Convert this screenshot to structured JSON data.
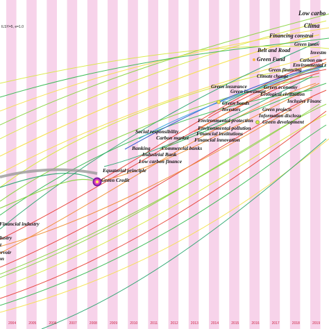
{
  "figure": {
    "param_text": "ILSY=5, e=1.0",
    "background_band_color": "#f7d3ea",
    "years": [
      "2004",
      "2005",
      "2006",
      "2007",
      "2008",
      "2009",
      "2010",
      "2011",
      "2012",
      "2013",
      "2014",
      "2015",
      "2016",
      "2017",
      "2018",
      "2019"
    ]
  },
  "keywords": [
    {
      "key": "low_carbon",
      "text": "Low carbo",
      "size": 9
    },
    {
      "key": "climate",
      "text": "Clima",
      "size": 9
    },
    {
      "key": "financing_constraints",
      "text": "Financing constrai",
      "size": 8
    },
    {
      "key": "green_innovation",
      "text": "Green innov",
      "size": 7
    },
    {
      "key": "belt_and_road",
      "text": "Belt and Road",
      "size": 8
    },
    {
      "key": "investment",
      "text": "Investm",
      "size": 7
    },
    {
      "key": "green_fund",
      "text": "Green Fund",
      "size": 8
    },
    {
      "key": "carbon_emissions",
      "text": "Carbon em",
      "size": 7
    },
    {
      "key": "environmental_regulation",
      "text": "Environmental r",
      "size": 7
    },
    {
      "key": "green_financing",
      "text": "Green financing",
      "size": 7
    },
    {
      "key": "climate_change",
      "text": "Climate change",
      "size": 7
    },
    {
      "key": "green_insurance",
      "text": "Green insurance",
      "size": 7.5
    },
    {
      "key": "green_economy",
      "text": "Green economy",
      "size": 7.5
    },
    {
      "key": "green_investment",
      "text": "Green investment",
      "size": 7
    },
    {
      "key": "ecological_civilization",
      "text": "Ecological civilization",
      "size": 7
    },
    {
      "key": "inclusive_finance",
      "text": "Inclusive Financ",
      "size": 7
    },
    {
      "key": "green_bonds",
      "text": "Green bonds",
      "size": 7.5
    },
    {
      "key": "investors",
      "text": "Investors",
      "size": 7
    },
    {
      "key": "green_projects",
      "text": "Green projects",
      "size": 7
    },
    {
      "key": "information_disclosure",
      "text": "Information disclosu",
      "size": 7
    },
    {
      "key": "green_development",
      "text": "Green development",
      "size": 7.5
    },
    {
      "key": "environmental_protection",
      "text": "Environmental protection",
      "size": 7.5
    },
    {
      "key": "environmental_pollution",
      "text": "Environmental pollution",
      "size": 7.5
    },
    {
      "key": "social_responsibility",
      "text": "Social responsibility",
      "size": 7.5
    },
    {
      "key": "financial_institutions",
      "text": "Financial institutions",
      "size": 7.5
    },
    {
      "key": "carbon_market",
      "text": "Carbon market",
      "size": 7.5
    },
    {
      "key": "financial_innovation",
      "text": "Financial innovation",
      "size": 7.5
    },
    {
      "key": "banking",
      "text": "Banking",
      "size": 7.5
    },
    {
      "key": "commercial_banks",
      "text": "Commercial banks",
      "size": 7.5
    },
    {
      "key": "industrial_bank",
      "text": "Industrial Bank",
      "size": 7.5
    },
    {
      "key": "low_carbon_finance",
      "text": "Low carbon finance",
      "size": 7.5
    },
    {
      "key": "equatorial_principle",
      "text": "Equatorial principle",
      "size": 7.5
    },
    {
      "key": "green_credit",
      "text": "Green Credit",
      "size": 7.5
    },
    {
      "key": "financial_industry",
      "text": "Financial industry",
      "size": 7.5
    },
    {
      "key": "industry",
      "text": "dustry",
      "size": 7.5
    },
    {
      "key": "frag_t",
      "text": "t",
      "size": 7.5
    },
    {
      "key": "reservoir",
      "text": "ervoir",
      "size": 7.5
    },
    {
      "key": "frag_on",
      "text": "on",
      "size": 7.5
    }
  ],
  "arc_colors": [
    "#f5e04a",
    "#d7e83a",
    "#86d43a",
    "#2fb84a",
    "#22a36a",
    "#e53b2e",
    "#f08a2c",
    "#2f5ad1",
    "#3aa3e0"
  ]
}
